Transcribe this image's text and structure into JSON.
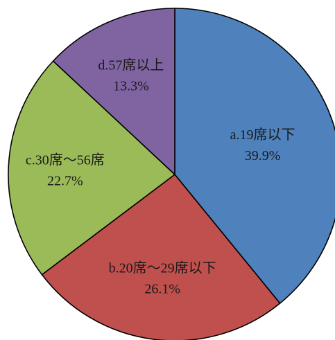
{
  "chart_data": {
    "type": "pie",
    "categories": [
      "a.19席以下",
      "b.20席～29席以下",
      "c.30席～56席",
      "d.57席以上"
    ],
    "values": [
      39.9,
      26.1,
      22.7,
      13.3
    ],
    "value_labels": [
      "39.9%",
      "26.1%",
      "22.7%",
      "13.3%"
    ],
    "colors": [
      "#4f81bd",
      "#c0504d",
      "#9bbb59",
      "#8064a2"
    ],
    "start": "12 o'clock",
    "direction": "clockwise",
    "legend": "none (labels inside slices)"
  }
}
